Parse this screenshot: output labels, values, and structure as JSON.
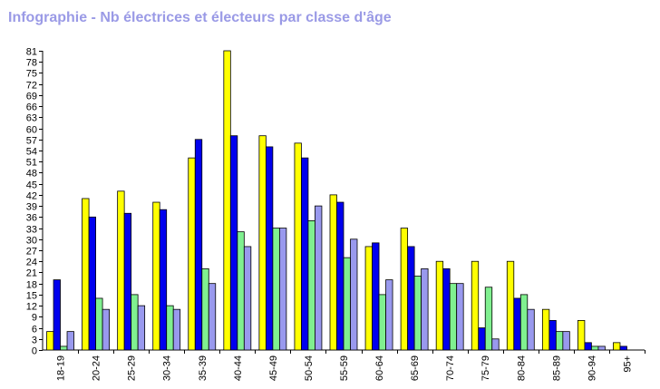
{
  "chart_data": {
    "type": "bar",
    "title": "Infographie - Nb électrices et électeurs par classe d'âge",
    "categories": [
      "18-19",
      "20-24",
      "25-29",
      "30-34",
      "35-39",
      "40-44",
      "45-49",
      "50-54",
      "55-59",
      "60-64",
      "65-69",
      "70-74",
      "75-79",
      "80-84",
      "85-89",
      "90-94",
      "95+"
    ],
    "series": [
      {
        "color": "#ffff00",
        "values": [
          5,
          41,
          43,
          40,
          52,
          81,
          58,
          56,
          42,
          28,
          33,
          24,
          24,
          24,
          11,
          8,
          2
        ]
      },
      {
        "color": "#0000ee",
        "values": [
          19,
          36,
          37,
          38,
          57,
          58,
          55,
          52,
          40,
          29,
          28,
          22,
          6,
          14,
          8,
          2,
          1
        ]
      },
      {
        "color": "#80f090",
        "values": [
          1,
          14,
          15,
          12,
          22,
          32,
          33,
          35,
          25,
          15,
          20,
          18,
          17,
          15,
          5,
          1,
          0
        ]
      },
      {
        "color": "#9999ee",
        "values": [
          5,
          11,
          12,
          11,
          18,
          28,
          33,
          39,
          30,
          19,
          22,
          18,
          3,
          11,
          5,
          1,
          0
        ]
      }
    ],
    "ylim": [
      0,
      81
    ],
    "yticks": [
      0,
      3,
      6,
      9,
      12,
      15,
      18,
      21,
      24,
      27,
      30,
      33,
      36,
      39,
      42,
      45,
      48,
      51,
      54,
      57,
      60,
      63,
      66,
      69,
      72,
      75,
      78,
      81
    ],
    "xlabel": "",
    "ylabel": "",
    "grid": false,
    "legend": false
  }
}
